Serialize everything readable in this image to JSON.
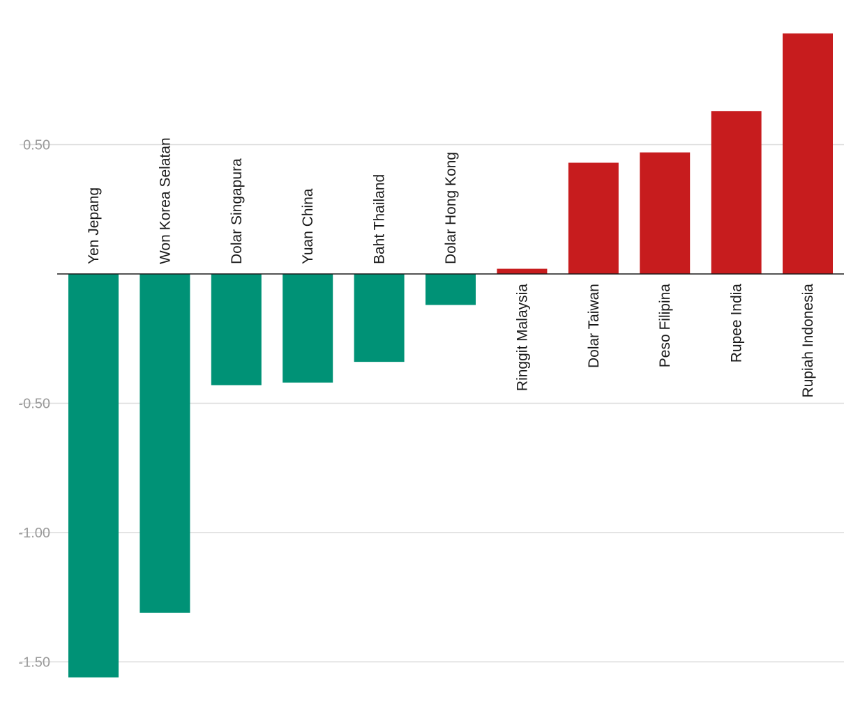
{
  "chart_data": {
    "type": "bar",
    "title": "",
    "xlabel": "",
    "ylabel": "",
    "categories": [
      "Yen Jepang",
      "Won Korea Selatan",
      "Dolar Singapura",
      "Yuan China",
      "Baht Thailand",
      "Dolar Hong Kong",
      "Ringgit Malaysia",
      "Dolar Taiwan",
      "Peso Filipina",
      "Rupee India",
      "Rupiah Indonesia"
    ],
    "values": [
      -1.56,
      -1.31,
      -0.43,
      -0.42,
      -0.34,
      -0.12,
      0.02,
      0.43,
      0.47,
      0.63,
      0.93
    ],
    "ylim": [
      -1.6,
      0.95
    ],
    "yticks": [
      0.5,
      -0.5,
      -1.0,
      -1.5
    ],
    "ytick_labels": [
      "0.50",
      "-0.50",
      "-1.00",
      "-1.50"
    ],
    "grid": true,
    "colors": {
      "negative": "#009276",
      "positive": "#c71c1e"
    }
  }
}
